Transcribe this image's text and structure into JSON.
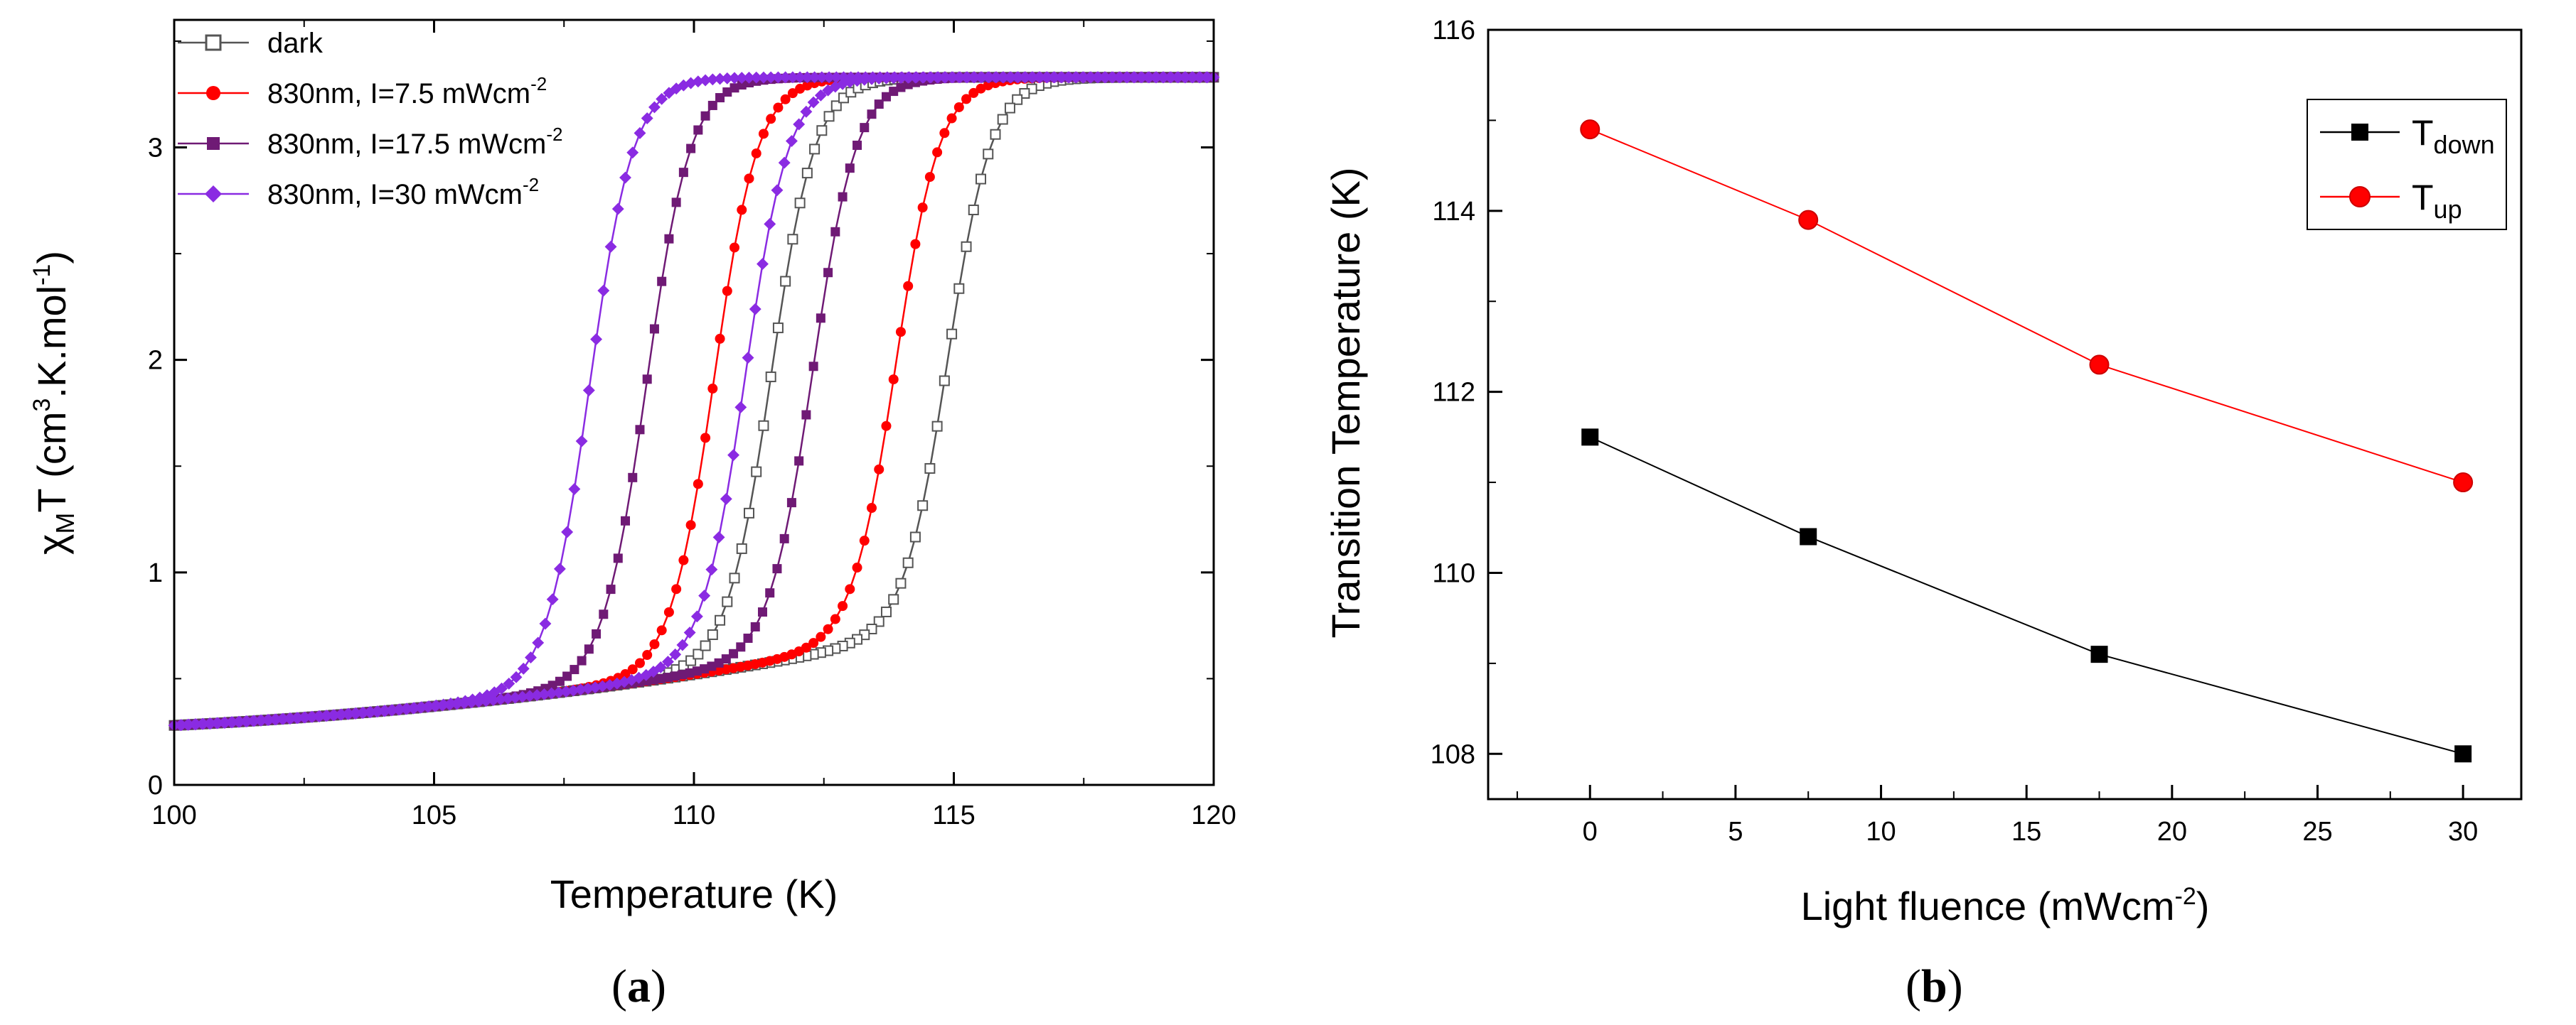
{
  "chart_data": [
    {
      "id": "a",
      "type": "line",
      "panel_label": "a",
      "xlabel": "Temperature (K)",
      "ylabel": "χMT (cm3.K.mol-1)",
      "ylabel_parts": {
        "chi": "χ",
        "sub": "M",
        "mid": "T (cm",
        "sup1": "3",
        "mid2": ".K.mol",
        "sup2": "-1",
        "end": ")"
      },
      "xlim": [
        100,
        120
      ],
      "ylim": [
        0,
        3.6
      ],
      "xticks": [
        "100",
        "105",
        "110",
        "115",
        "120"
      ],
      "xtick_values": [
        100,
        105,
        110,
        115,
        120
      ],
      "yticks": [
        "0",
        "1",
        "2",
        "3"
      ],
      "ytick_values": [
        0,
        1,
        2,
        3
      ],
      "legend_position": "top-left",
      "series": [
        {
          "name": "dark",
          "label_main": "dark",
          "label_sup": "",
          "color": "#555555",
          "marker": "open-square",
          "T_down": 111.5,
          "T_up": 114.9
        },
        {
          "name": "830nm, I=7.5 mWcm-2",
          "label_main": "830nm,  I=7.5 mWcm",
          "label_sup": "-2",
          "color": "#ff0000",
          "marker": "circle",
          "T_down": 110.4,
          "T_up": 113.9
        },
        {
          "name": "830nm, I=17.5 mWcm-2",
          "label_main": "830nm,  I=17.5 mWcm",
          "label_sup": "-2",
          "color": "#6f1a75",
          "marker": "square",
          "T_down": 109.1,
          "T_up": 112.3
        },
        {
          "name": "830nm, I=30 mWcm-2",
          "label_main": "830nm,  I=30 mWcm",
          "label_sup": "-2",
          "color": "#8a2be2",
          "marker": "diamond",
          "T_down": 108.0,
          "T_up": 111.0
        }
      ],
      "low_level": 0.28,
      "high_level": 3.33
    },
    {
      "id": "b",
      "type": "line",
      "panel_label": "b",
      "xlabel": "Light fluence (mWcm-2)",
      "xlabel_parts": {
        "main": "Light fluence (mWcm",
        "sup": "-2",
        "end": ")"
      },
      "ylabel": "Transition Temperature (K)",
      "xlim": [
        -3.5,
        32
      ],
      "ylim": [
        107.5,
        116
      ],
      "xticks": [
        "0",
        "5",
        "10",
        "15",
        "20",
        "25",
        "30"
      ],
      "xtick_values": [
        0,
        5,
        10,
        15,
        20,
        25,
        30
      ],
      "yticks": [
        "108",
        "110",
        "112",
        "114",
        "116"
      ],
      "ytick_values": [
        108,
        110,
        112,
        114,
        116
      ],
      "legend_position": "top-right",
      "x": [
        0,
        7.5,
        17.5,
        30
      ],
      "series": [
        {
          "name": "Tdown",
          "label_main": "T",
          "label_sub": "down",
          "color": "#000000",
          "marker": "square",
          "values": [
            111.5,
            110.4,
            109.1,
            108.0
          ]
        },
        {
          "name": "Tup",
          "label_main": "T",
          "label_sub": "up",
          "color": "#ff0000",
          "marker": "circle",
          "values": [
            114.9,
            113.9,
            112.3,
            111.0
          ]
        }
      ]
    }
  ]
}
